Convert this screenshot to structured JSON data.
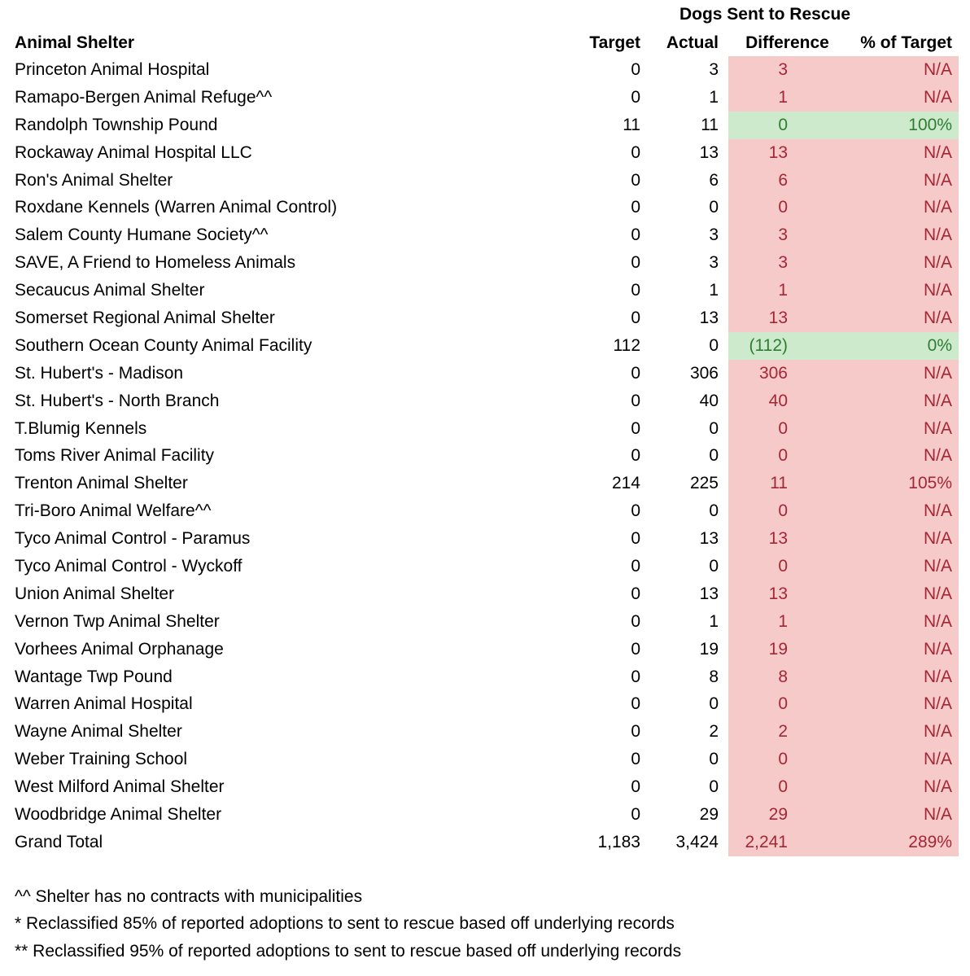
{
  "chart_data": {
    "type": "table",
    "title": "Dogs Sent to Rescue",
    "columns": [
      "Animal Shelter",
      "Target",
      "Actual",
      "Difference",
      "% of Target"
    ],
    "rows": [
      {
        "shelter": "Princeton Animal Hospital",
        "target": "0",
        "actual": "3",
        "difference": "3",
        "pct": "N/A",
        "status": "bad"
      },
      {
        "shelter": "Ramapo-Bergen Animal Refuge^^",
        "target": "0",
        "actual": "1",
        "difference": "1",
        "pct": "N/A",
        "status": "bad"
      },
      {
        "shelter": "Randolph Township Pound",
        "target": "11",
        "actual": "11",
        "difference": "0",
        "pct": "100%",
        "status": "good"
      },
      {
        "shelter": "Rockaway Animal Hospital LLC",
        "target": "0",
        "actual": "13",
        "difference": "13",
        "pct": "N/A",
        "status": "bad"
      },
      {
        "shelter": "Ron's Animal Shelter",
        "target": "0",
        "actual": "6",
        "difference": "6",
        "pct": "N/A",
        "status": "bad"
      },
      {
        "shelter": "Roxdane Kennels (Warren Animal Control)",
        "target": "0",
        "actual": "0",
        "difference": "0",
        "pct": "N/A",
        "status": "bad"
      },
      {
        "shelter": "Salem County Humane Society^^",
        "target": "0",
        "actual": "3",
        "difference": "3",
        "pct": "N/A",
        "status": "bad"
      },
      {
        "shelter": "SAVE, A Friend to Homeless Animals",
        "target": "0",
        "actual": "3",
        "difference": "3",
        "pct": "N/A",
        "status": "bad"
      },
      {
        "shelter": "Secaucus Animal Shelter",
        "target": "0",
        "actual": "1",
        "difference": "1",
        "pct": "N/A",
        "status": "bad"
      },
      {
        "shelter": "Somerset Regional Animal Shelter",
        "target": "0",
        "actual": "13",
        "difference": "13",
        "pct": "N/A",
        "status": "bad"
      },
      {
        "shelter": "Southern Ocean County Animal Facility",
        "target": "112",
        "actual": "0",
        "difference": "(112)",
        "pct": "0%",
        "status": "good"
      },
      {
        "shelter": "St. Hubert's - Madison",
        "target": "0",
        "actual": "306",
        "difference": "306",
        "pct": "N/A",
        "status": "bad"
      },
      {
        "shelter": "St. Hubert's - North Branch",
        "target": "0",
        "actual": "40",
        "difference": "40",
        "pct": "N/A",
        "status": "bad"
      },
      {
        "shelter": "T.Blumig Kennels",
        "target": "0",
        "actual": "0",
        "difference": "0",
        "pct": "N/A",
        "status": "bad"
      },
      {
        "shelter": "Toms River Animal Facility",
        "target": "0",
        "actual": "0",
        "difference": "0",
        "pct": "N/A",
        "status": "bad"
      },
      {
        "shelter": "Trenton Animal Shelter",
        "target": "214",
        "actual": "225",
        "difference": "11",
        "pct": "105%",
        "status": "bad"
      },
      {
        "shelter": "Tri-Boro Animal Welfare^^",
        "target": "0",
        "actual": "0",
        "difference": "0",
        "pct": "N/A",
        "status": "bad"
      },
      {
        "shelter": "Tyco Animal Control - Paramus",
        "target": "0",
        "actual": "13",
        "difference": "13",
        "pct": "N/A",
        "status": "bad"
      },
      {
        "shelter": "Tyco Animal Control - Wyckoff",
        "target": "0",
        "actual": "0",
        "difference": "0",
        "pct": "N/A",
        "status": "bad"
      },
      {
        "shelter": "Union Animal Shelter",
        "target": "0",
        "actual": "13",
        "difference": "13",
        "pct": "N/A",
        "status": "bad"
      },
      {
        "shelter": "Vernon Twp Animal Shelter",
        "target": "0",
        "actual": "1",
        "difference": "1",
        "pct": "N/A",
        "status": "bad"
      },
      {
        "shelter": "Vorhees Animal Orphanage",
        "target": "0",
        "actual": "19",
        "difference": "19",
        "pct": "N/A",
        "status": "bad"
      },
      {
        "shelter": "Wantage Twp Pound",
        "target": "0",
        "actual": "8",
        "difference": "8",
        "pct": "N/A",
        "status": "bad"
      },
      {
        "shelter": "Warren Animal Hospital",
        "target": "0",
        "actual": "0",
        "difference": "0",
        "pct": "N/A",
        "status": "bad"
      },
      {
        "shelter": "Wayne Animal Shelter",
        "target": "0",
        "actual": "2",
        "difference": "2",
        "pct": "N/A",
        "status": "bad"
      },
      {
        "shelter": "Weber Training School",
        "target": "0",
        "actual": "0",
        "difference": "0",
        "pct": "N/A",
        "status": "bad"
      },
      {
        "shelter": "West Milford Animal Shelter",
        "target": "0",
        "actual": "0",
        "difference": "0",
        "pct": "N/A",
        "status": "bad"
      },
      {
        "shelter": "Woodbridge Animal Shelter",
        "target": "0",
        "actual": "29",
        "difference": "29",
        "pct": "N/A",
        "status": "bad"
      },
      {
        "shelter": "Grand Total",
        "target": "1,183",
        "actual": "3,424",
        "difference": "2,241",
        "pct": "289%",
        "status": "bad"
      }
    ],
    "legend_position": "none",
    "grid": false
  },
  "footnotes": [
    "^^ Shelter has no contracts with municipalities",
    "* Reclassified 85% of reported adoptions to sent to rescue based off underlying records",
    "** Reclassified 95% of reported adoptions to sent to rescue based off underlying records"
  ],
  "colors": {
    "bad_background": "#f7caca",
    "bad_text": "#a32734",
    "good_background": "#cdeacd",
    "good_text": "#2f7d33",
    "default_text": "#000000",
    "page_background": "#ffffff"
  }
}
